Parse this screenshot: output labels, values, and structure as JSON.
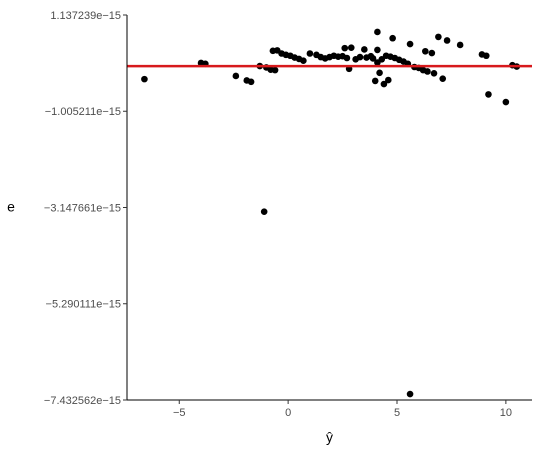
{
  "chart_data": {
    "type": "scatter",
    "title": "",
    "xlabel": "ŷ",
    "ylabel": "e",
    "xlim": [
      -7.4,
      11.2
    ],
    "ylim": [
      -7.432562e-15,
      1.137239e-15
    ],
    "x_ticks": [
      {
        "value": -5,
        "label": "−5"
      },
      {
        "value": 0,
        "label": "0"
      },
      {
        "value": 5,
        "label": "5"
      },
      {
        "value": 10,
        "label": "10"
      }
    ],
    "y_ticks": [
      {
        "value": 1.137239e-15,
        "label": "1.137239e−15"
      },
      {
        "value": -1.005211e-15,
        "label": "−1.005211e−15"
      },
      {
        "value": -3.147661e-15,
        "label": "−3.147661e−15"
      },
      {
        "value": -5.290111e-15,
        "label": "−5.290111e−15"
      },
      {
        "value": -7.432562e-15,
        "label": "−7.432562e−15"
      }
    ],
    "reference_line": {
      "y": 0,
      "color": "#d7191c"
    },
    "grid": false,
    "point_color": "#000000",
    "points": [
      {
        "x": -6.6,
        "y": -2.9e-16
      },
      {
        "x": -4.0,
        "y": 7e-17
      },
      {
        "x": -3.8,
        "y": 5e-17
      },
      {
        "x": -2.4,
        "y": -2.2e-16
      },
      {
        "x": -1.9,
        "y": -3.2e-16
      },
      {
        "x": -1.7,
        "y": -3.5e-16
      },
      {
        "x": -1.3,
        "y": 0.0
      },
      {
        "x": -1.1,
        "y": -3.24e-15
      },
      {
        "x": -1.0,
        "y": -3e-17
      },
      {
        "x": -0.8,
        "y": -8e-17
      },
      {
        "x": -0.6,
        "y": -9e-17
      },
      {
        "x": -0.7,
        "y": 3.4e-16
      },
      {
        "x": -0.5,
        "y": 3.5e-16
      },
      {
        "x": -0.3,
        "y": 2.8e-16
      },
      {
        "x": -0.1,
        "y": 2.5e-16
      },
      {
        "x": 0.1,
        "y": 2.3e-16
      },
      {
        "x": 0.3,
        "y": 1.9e-16
      },
      {
        "x": 0.5,
        "y": 1.6e-16
      },
      {
        "x": 0.7,
        "y": 1.2e-16
      },
      {
        "x": 1.0,
        "y": 2.8e-16
      },
      {
        "x": 1.3,
        "y": 2.5e-16
      },
      {
        "x": 1.5,
        "y": 2e-16
      },
      {
        "x": 1.7,
        "y": 1.7e-16
      },
      {
        "x": 1.9,
        "y": 2e-16
      },
      {
        "x": 2.1,
        "y": 2.3e-16
      },
      {
        "x": 2.3,
        "y": 2.1e-16
      },
      {
        "x": 2.5,
        "y": 2.2e-16
      },
      {
        "x": 2.6,
        "y": 4e-16
      },
      {
        "x": 2.7,
        "y": 1.8e-16
      },
      {
        "x": 2.8,
        "y": -6e-17
      },
      {
        "x": 2.9,
        "y": 4.1e-16
      },
      {
        "x": 3.1,
        "y": 1.5e-16
      },
      {
        "x": 3.3,
        "y": 2e-16
      },
      {
        "x": 3.5,
        "y": 3.7e-16
      },
      {
        "x": 3.6,
        "y": 1.9e-16
      },
      {
        "x": 3.8,
        "y": 2.2e-16
      },
      {
        "x": 3.9,
        "y": 1.7e-16
      },
      {
        "x": 4.0,
        "y": -3.3e-16
      },
      {
        "x": 4.1,
        "y": 7.6e-16
      },
      {
        "x": 4.1,
        "y": 3.6e-16
      },
      {
        "x": 4.1,
        "y": 8e-17
      },
      {
        "x": 4.2,
        "y": -1.5e-16
      },
      {
        "x": 4.3,
        "y": 1.5e-16
      },
      {
        "x": 4.4,
        "y": -4e-16
      },
      {
        "x": 4.5,
        "y": 2.3e-16
      },
      {
        "x": 4.6,
        "y": -3.1e-16
      },
      {
        "x": 4.7,
        "y": 2.1e-16
      },
      {
        "x": 4.8,
        "y": 6.2e-16
      },
      {
        "x": 4.9,
        "y": 1.8e-16
      },
      {
        "x": 5.1,
        "y": 1.4e-16
      },
      {
        "x": 5.3,
        "y": 1e-16
      },
      {
        "x": 5.5,
        "y": 5e-17
      },
      {
        "x": 5.6,
        "y": 4.9e-16
      },
      {
        "x": 5.8,
        "y": -2e-17
      },
      {
        "x": 5.6,
        "y": -7.3e-15
      },
      {
        "x": 6.0,
        "y": -4e-17
      },
      {
        "x": 6.2,
        "y": -9e-17
      },
      {
        "x": 6.3,
        "y": 3.3e-16
      },
      {
        "x": 6.4,
        "y": -1.2e-16
      },
      {
        "x": 6.6,
        "y": 2.9e-16
      },
      {
        "x": 6.7,
        "y": -1.6e-16
      },
      {
        "x": 6.9,
        "y": 6.5e-16
      },
      {
        "x": 7.1,
        "y": -2.8e-16
      },
      {
        "x": 7.3,
        "y": 5.7e-16
      },
      {
        "x": 7.9,
        "y": 4.7e-16
      },
      {
        "x": 8.9,
        "y": 2.6e-16
      },
      {
        "x": 9.1,
        "y": 2.3e-16
      },
      {
        "x": 9.2,
        "y": -6.3e-16
      },
      {
        "x": 10.0,
        "y": -8e-16
      },
      {
        "x": 10.3,
        "y": 2e-17
      },
      {
        "x": 10.5,
        "y": -1e-17
      }
    ]
  }
}
